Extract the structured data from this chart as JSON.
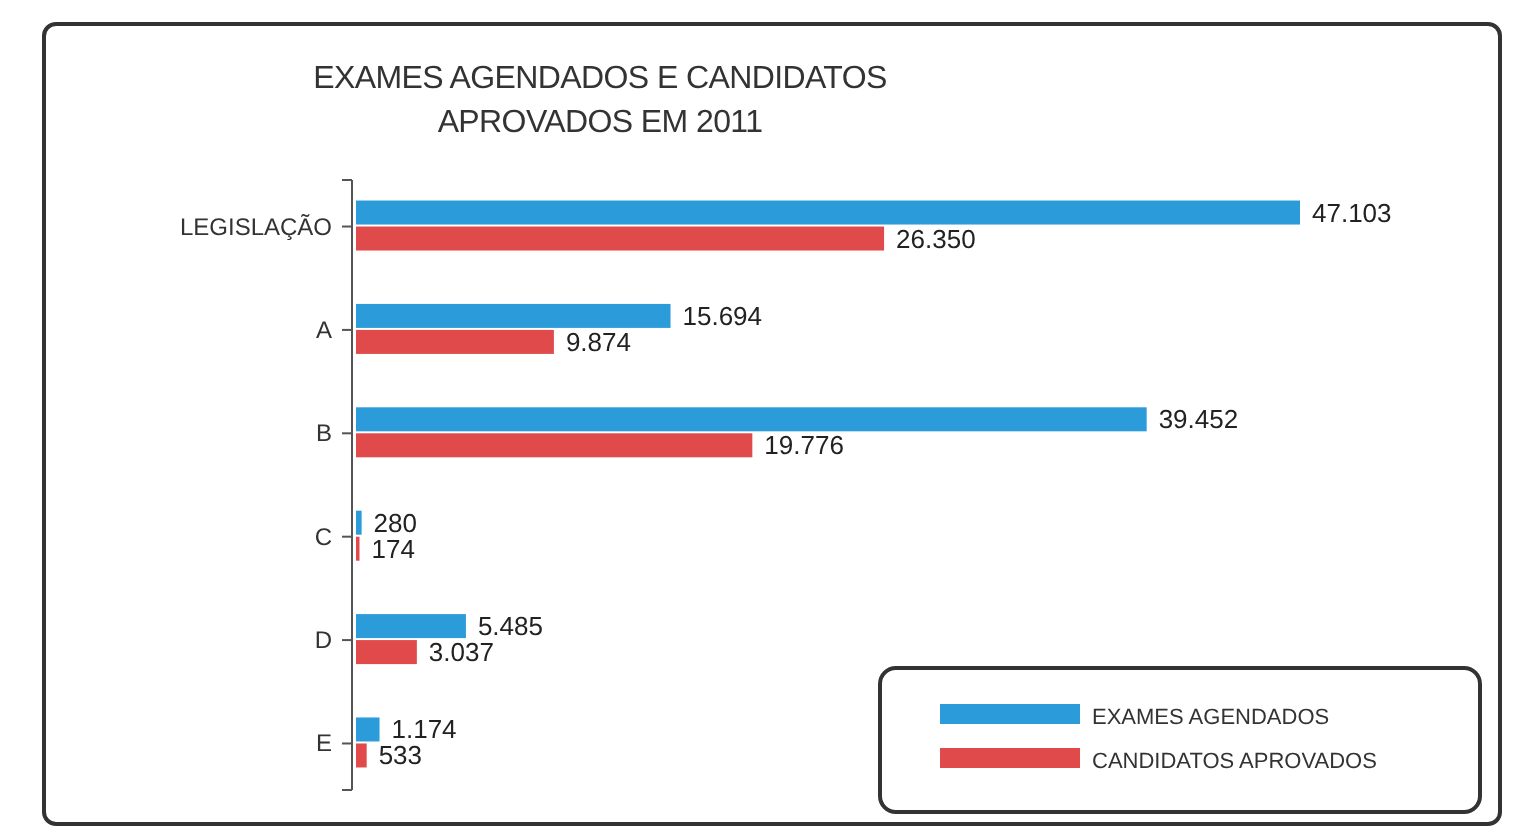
{
  "chart_data": {
    "type": "bar",
    "orientation": "horizontal",
    "title": "EXAMES AGENDADOS E CANDIDATOS\nAPROVADOS EM 2011",
    "categories": [
      "LEGISLAÇÃO",
      "A",
      "B",
      "C",
      "D",
      "E"
    ],
    "series": [
      {
        "name": "EXAMES AGENDADOS",
        "color": "#2b9bd9",
        "values": [
          47103,
          15694,
          39452,
          280,
          5485,
          1174
        ],
        "value_labels": [
          "47.103",
          "15.694",
          "39.452",
          "280",
          "5.485",
          "1.174"
        ]
      },
      {
        "name": "CANDIDATOS APROVADOS",
        "color": "#e04a4a",
        "values": [
          26350,
          9874,
          19776,
          174,
          3037,
          533
        ],
        "value_labels": [
          "26.350",
          "9.874",
          "19.776",
          "174",
          "3.037",
          "533"
        ]
      }
    ],
    "legend": "bottom right"
  }
}
